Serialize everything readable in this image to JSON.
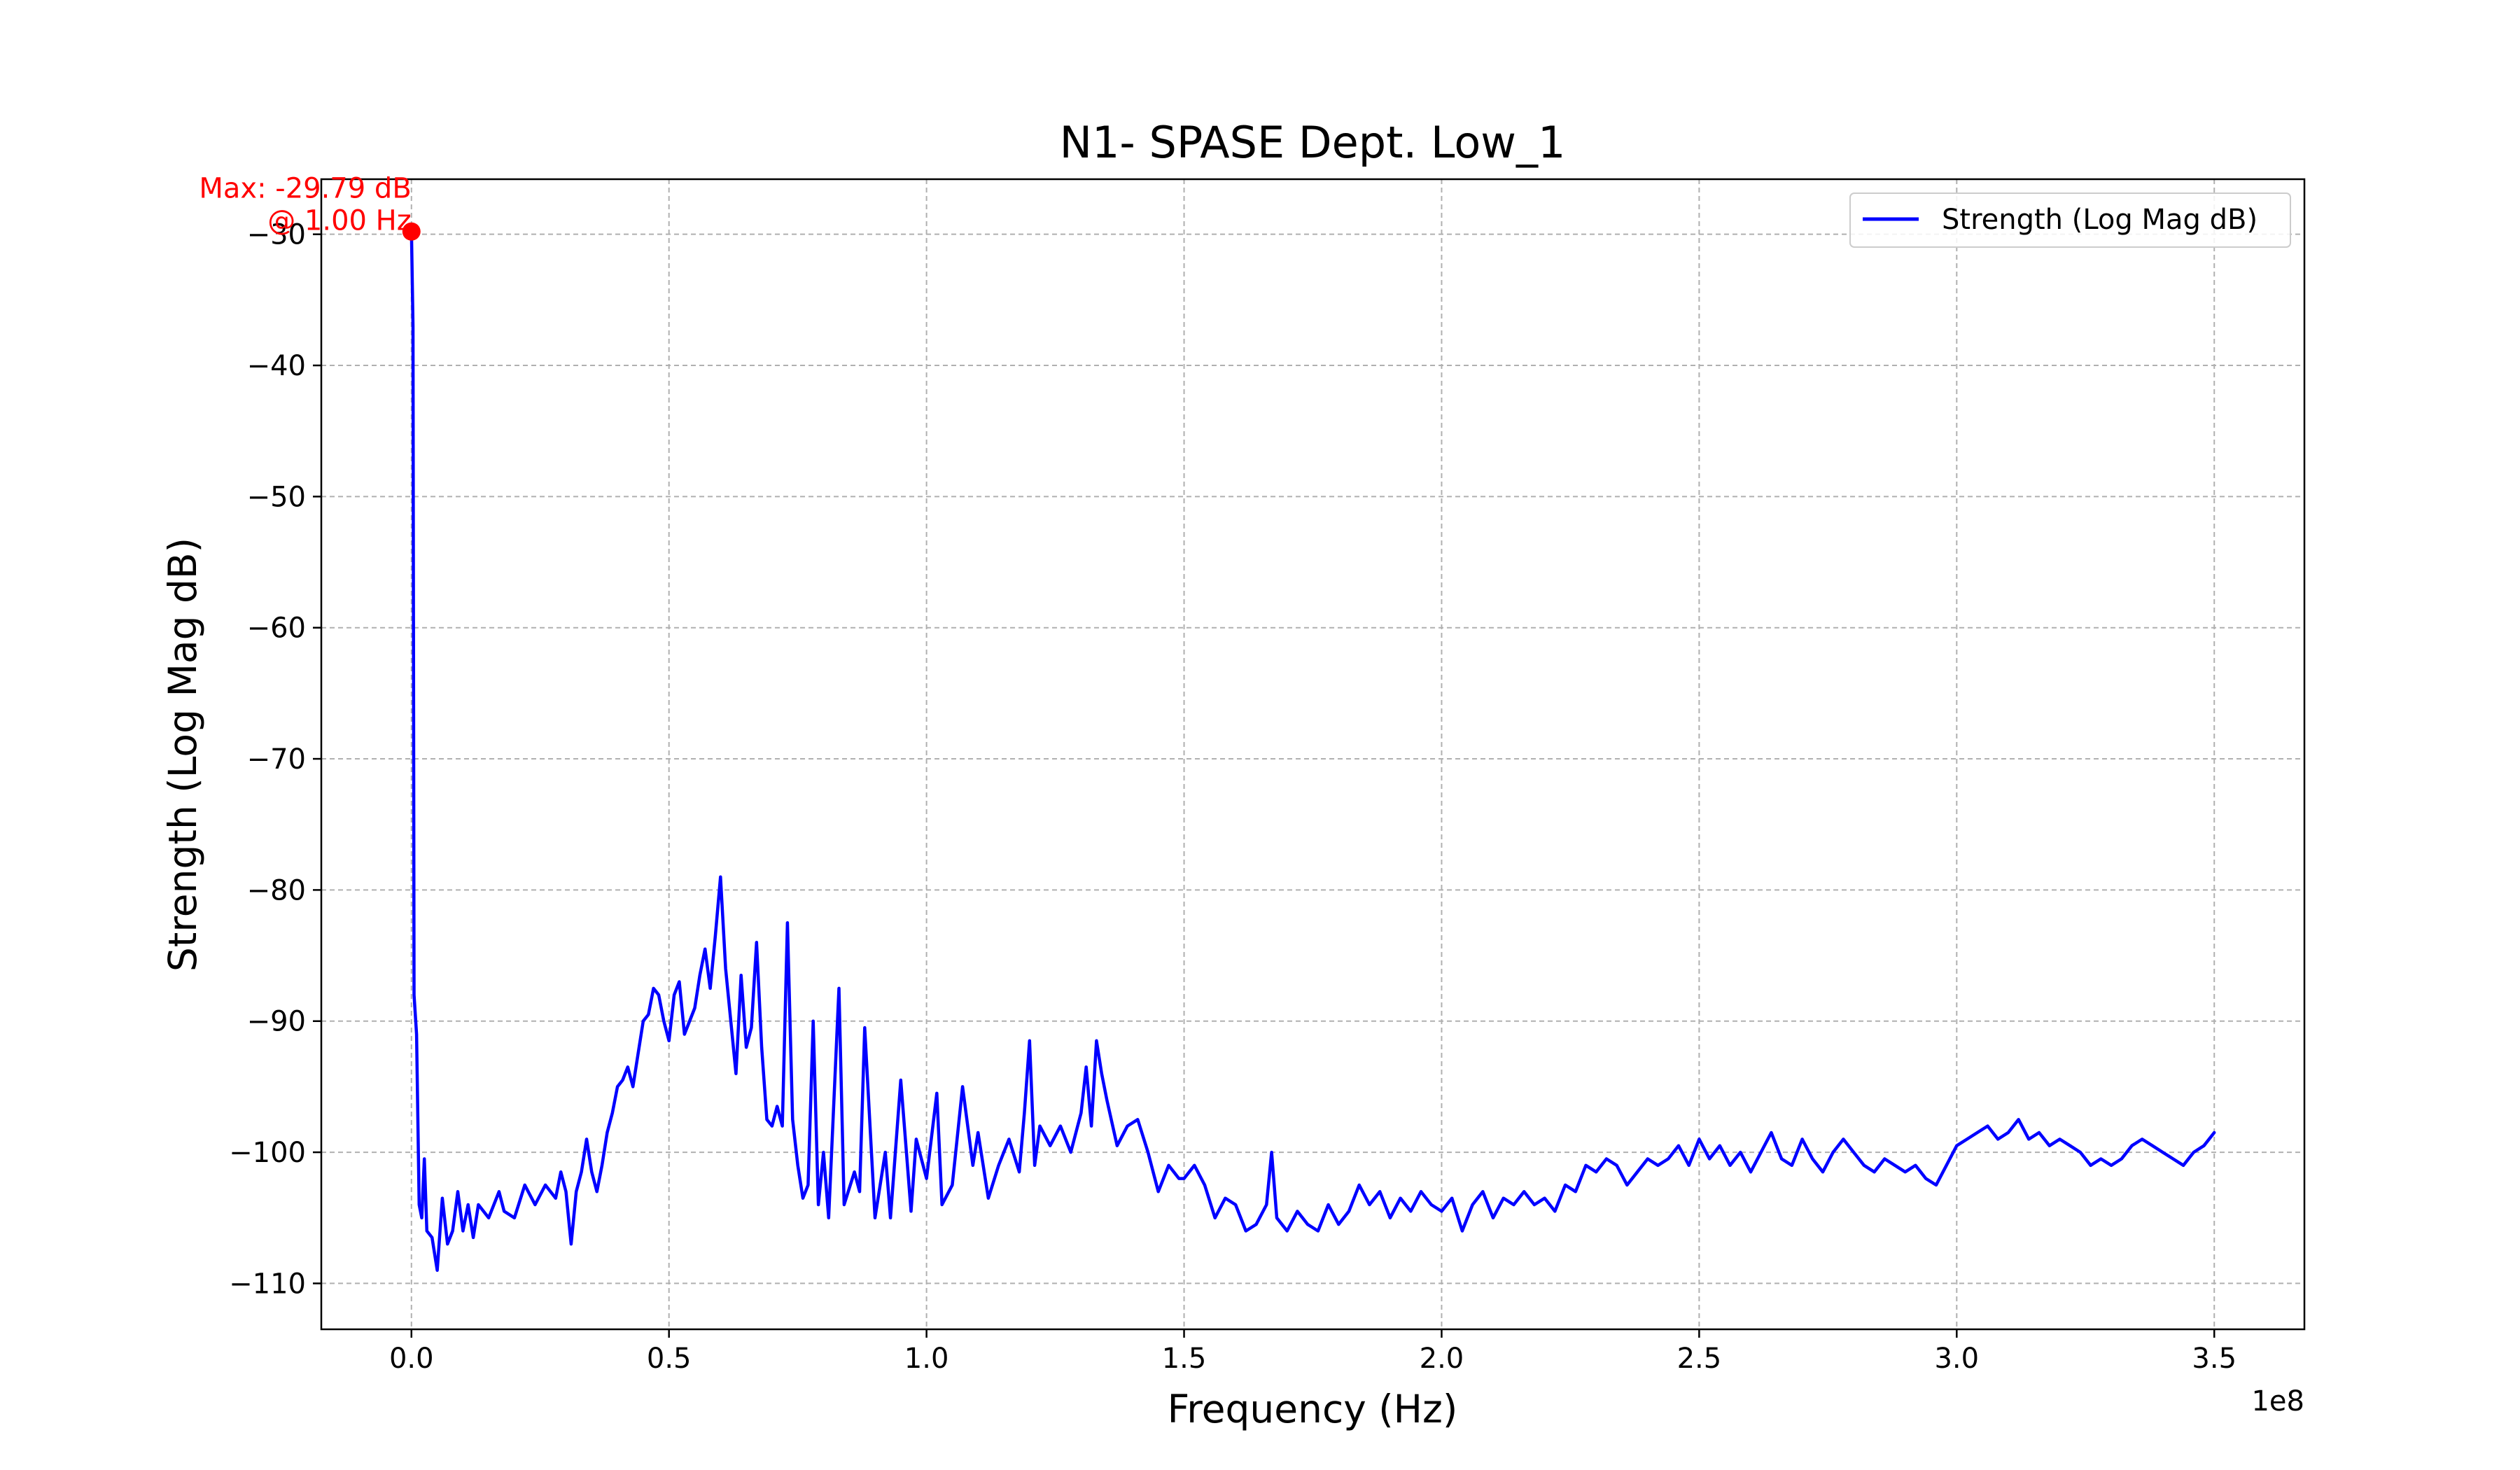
{
  "chart_data": {
    "type": "line",
    "title": "N1- SPASE Dept. Low_1",
    "xlabel": "Frequency (Hz)",
    "ylabel": "Strength (Log Mag dB)",
    "x_offset_label": "1e8",
    "xlim": [
      -0.175,
      3.675
    ],
    "ylim": [
      -113.5,
      -25.8
    ],
    "x_ticks": [
      0.0,
      0.5,
      1.0,
      1.5,
      2.0,
      2.5,
      3.0,
      3.5
    ],
    "x_tick_labels": [
      "0.0",
      "0.5",
      "1.0",
      "1.5",
      "2.0",
      "2.5",
      "3.0",
      "3.5"
    ],
    "y_ticks": [
      -30,
      -40,
      -50,
      -60,
      -70,
      -80,
      -90,
      -100,
      -110
    ],
    "y_tick_labels": [
      "−30",
      "−40",
      "−50",
      "−60",
      "−70",
      "−80",
      "−90",
      "−100",
      "−110"
    ],
    "grid": true,
    "legend_position": "top-right",
    "series": [
      {
        "name": "Strength (Log Mag dB)",
        "color": "#0000ff",
        "x_unit_scale": "1e8",
        "points": [
          [
            0.0,
            -29.79
          ],
          [
            0.003,
            -37
          ],
          [
            0.005,
            -88
          ],
          [
            0.01,
            -91
          ],
          [
            0.015,
            -104
          ],
          [
            0.02,
            -105
          ],
          [
            0.025,
            -100.5
          ],
          [
            0.03,
            -106
          ],
          [
            0.04,
            -106.5
          ],
          [
            0.05,
            -109
          ],
          [
            0.06,
            -103.5
          ],
          [
            0.07,
            -107
          ],
          [
            0.08,
            -106
          ],
          [
            0.09,
            -103
          ],
          [
            0.1,
            -106
          ],
          [
            0.11,
            -104
          ],
          [
            0.12,
            -106.5
          ],
          [
            0.13,
            -104
          ],
          [
            0.15,
            -105
          ],
          [
            0.17,
            -103
          ],
          [
            0.18,
            -104.5
          ],
          [
            0.2,
            -105
          ],
          [
            0.22,
            -102.5
          ],
          [
            0.24,
            -104
          ],
          [
            0.26,
            -102.5
          ],
          [
            0.28,
            -103.5
          ],
          [
            0.29,
            -101.5
          ],
          [
            0.3,
            -103
          ],
          [
            0.31,
            -107
          ],
          [
            0.32,
            -103
          ],
          [
            0.33,
            -101.5
          ],
          [
            0.34,
            -99
          ],
          [
            0.35,
            -101.5
          ],
          [
            0.36,
            -103
          ],
          [
            0.37,
            -101
          ],
          [
            0.38,
            -98.5
          ],
          [
            0.39,
            -97
          ],
          [
            0.4,
            -95
          ],
          [
            0.41,
            -94.5
          ],
          [
            0.42,
            -93.5
          ],
          [
            0.43,
            -95
          ],
          [
            0.44,
            -92.5
          ],
          [
            0.45,
            -90
          ],
          [
            0.46,
            -89.5
          ],
          [
            0.47,
            -87.5
          ],
          [
            0.48,
            -88
          ],
          [
            0.49,
            -90
          ],
          [
            0.5,
            -91.5
          ],
          [
            0.51,
            -88
          ],
          [
            0.52,
            -87
          ],
          [
            0.53,
            -91
          ],
          [
            0.55,
            -89
          ],
          [
            0.56,
            -86.5
          ],
          [
            0.57,
            -84.5
          ],
          [
            0.58,
            -87.5
          ],
          [
            0.59,
            -83.5
          ],
          [
            0.6,
            -79
          ],
          [
            0.61,
            -86
          ],
          [
            0.62,
            -90
          ],
          [
            0.63,
            -94
          ],
          [
            0.64,
            -86.5
          ],
          [
            0.65,
            -92
          ],
          [
            0.66,
            -90.5
          ],
          [
            0.67,
            -84
          ],
          [
            0.68,
            -92
          ],
          [
            0.69,
            -97.5
          ],
          [
            0.7,
            -98
          ],
          [
            0.71,
            -96.5
          ],
          [
            0.72,
            -98
          ],
          [
            0.73,
            -82.5
          ],
          [
            0.74,
            -97.5
          ],
          [
            0.75,
            -101
          ],
          [
            0.76,
            -103.5
          ],
          [
            0.77,
            -102.5
          ],
          [
            0.78,
            -90
          ],
          [
            0.79,
            -104
          ],
          [
            0.8,
            -100
          ],
          [
            0.81,
            -105
          ],
          [
            0.83,
            -87.5
          ],
          [
            0.84,
            -104
          ],
          [
            0.86,
            -101.5
          ],
          [
            0.87,
            -103
          ],
          [
            0.88,
            -90.5
          ],
          [
            0.9,
            -105
          ],
          [
            0.92,
            -100
          ],
          [
            0.93,
            -105
          ],
          [
            0.95,
            -94.5
          ],
          [
            0.97,
            -104.5
          ],
          [
            0.98,
            -99
          ],
          [
            1.0,
            -102
          ],
          [
            1.02,
            -95.5
          ],
          [
            1.03,
            -104
          ],
          [
            1.05,
            -102.5
          ],
          [
            1.07,
            -95
          ],
          [
            1.09,
            -101
          ],
          [
            1.1,
            -98.5
          ],
          [
            1.12,
            -103.5
          ],
          [
            1.14,
            -101
          ],
          [
            1.16,
            -99
          ],
          [
            1.18,
            -101.5
          ],
          [
            1.19,
            -97
          ],
          [
            1.2,
            -91.5
          ],
          [
            1.21,
            -101
          ],
          [
            1.22,
            -98
          ],
          [
            1.24,
            -99.5
          ],
          [
            1.26,
            -98
          ],
          [
            1.28,
            -100
          ],
          [
            1.3,
            -97
          ],
          [
            1.31,
            -93.5
          ],
          [
            1.32,
            -98
          ],
          [
            1.33,
            -91.5
          ],
          [
            1.34,
            -94
          ],
          [
            1.35,
            -96
          ],
          [
            1.37,
            -99.5
          ],
          [
            1.39,
            -98
          ],
          [
            1.41,
            -97.5
          ],
          [
            1.43,
            -100
          ],
          [
            1.45,
            -103
          ],
          [
            1.47,
            -101
          ],
          [
            1.49,
            -102
          ],
          [
            1.5,
            -102
          ],
          [
            1.52,
            -101
          ],
          [
            1.54,
            -102.5
          ],
          [
            1.56,
            -105
          ],
          [
            1.58,
            -103.5
          ],
          [
            1.6,
            -104
          ],
          [
            1.62,
            -106
          ],
          [
            1.64,
            -105.5
          ],
          [
            1.66,
            -104
          ],
          [
            1.67,
            -100
          ],
          [
            1.68,
            -105
          ],
          [
            1.7,
            -106
          ],
          [
            1.72,
            -104.5
          ],
          [
            1.74,
            -105.5
          ],
          [
            1.76,
            -106
          ],
          [
            1.78,
            -104
          ],
          [
            1.8,
            -105.5
          ],
          [
            1.82,
            -104.5
          ],
          [
            1.84,
            -102.5
          ],
          [
            1.86,
            -104
          ],
          [
            1.88,
            -103
          ],
          [
            1.9,
            -105
          ],
          [
            1.92,
            -103.5
          ],
          [
            1.94,
            -104.5
          ],
          [
            1.96,
            -103
          ],
          [
            1.98,
            -104
          ],
          [
            2.0,
            -104.5
          ],
          [
            2.02,
            -103.5
          ],
          [
            2.04,
            -106
          ],
          [
            2.06,
            -104
          ],
          [
            2.08,
            -103
          ],
          [
            2.1,
            -105
          ],
          [
            2.12,
            -103.5
          ],
          [
            2.14,
            -104
          ],
          [
            2.16,
            -103
          ],
          [
            2.18,
            -104
          ],
          [
            2.2,
            -103.5
          ],
          [
            2.22,
            -104.5
          ],
          [
            2.24,
            -102.5
          ],
          [
            2.26,
            -103
          ],
          [
            2.28,
            -101
          ],
          [
            2.3,
            -101.5
          ],
          [
            2.32,
            -100.5
          ],
          [
            2.34,
            -101
          ],
          [
            2.36,
            -102.5
          ],
          [
            2.38,
            -101.5
          ],
          [
            2.4,
            -100.5
          ],
          [
            2.42,
            -101
          ],
          [
            2.44,
            -100.5
          ],
          [
            2.46,
            -99.5
          ],
          [
            2.48,
            -101
          ],
          [
            2.5,
            -99
          ],
          [
            2.52,
            -100.5
          ],
          [
            2.54,
            -99.5
          ],
          [
            2.56,
            -101
          ],
          [
            2.58,
            -100
          ],
          [
            2.6,
            -101.5
          ],
          [
            2.62,
            -100
          ],
          [
            2.64,
            -98.5
          ],
          [
            2.66,
            -100.5
          ],
          [
            2.68,
            -101
          ],
          [
            2.7,
            -99
          ],
          [
            2.72,
            -100.5
          ],
          [
            2.74,
            -101.5
          ],
          [
            2.76,
            -100
          ],
          [
            2.78,
            -99
          ],
          [
            2.8,
            -100
          ],
          [
            2.82,
            -101
          ],
          [
            2.84,
            -101.5
          ],
          [
            2.86,
            -100.5
          ],
          [
            2.88,
            -101
          ],
          [
            2.9,
            -101.5
          ],
          [
            2.92,
            -101
          ],
          [
            2.94,
            -102
          ],
          [
            2.96,
            -102.5
          ],
          [
            2.98,
            -101
          ],
          [
            3.0,
            -99.5
          ],
          [
            3.02,
            -99
          ],
          [
            3.04,
            -98.5
          ],
          [
            3.06,
            -98
          ],
          [
            3.08,
            -99
          ],
          [
            3.1,
            -98.5
          ],
          [
            3.12,
            -97.5
          ],
          [
            3.14,
            -99
          ],
          [
            3.16,
            -98.5
          ],
          [
            3.18,
            -99.5
          ],
          [
            3.2,
            -99
          ],
          [
            3.22,
            -99.5
          ],
          [
            3.24,
            -100
          ],
          [
            3.26,
            -101
          ],
          [
            3.28,
            -100.5
          ],
          [
            3.3,
            -101
          ],
          [
            3.32,
            -100.5
          ],
          [
            3.34,
            -99.5
          ],
          [
            3.36,
            -99
          ],
          [
            3.38,
            -99.5
          ],
          [
            3.4,
            -100
          ],
          [
            3.42,
            -100.5
          ],
          [
            3.44,
            -101
          ],
          [
            3.46,
            -100
          ],
          [
            3.48,
            -99.5
          ],
          [
            3.5,
            -98.5
          ]
        ]
      }
    ],
    "annotation": {
      "text_line1": "Max: -29.79 dB",
      "text_line2": "@ 1.00 Hz",
      "x": 0.0,
      "y": -29.79,
      "color": "#ff0000"
    }
  }
}
